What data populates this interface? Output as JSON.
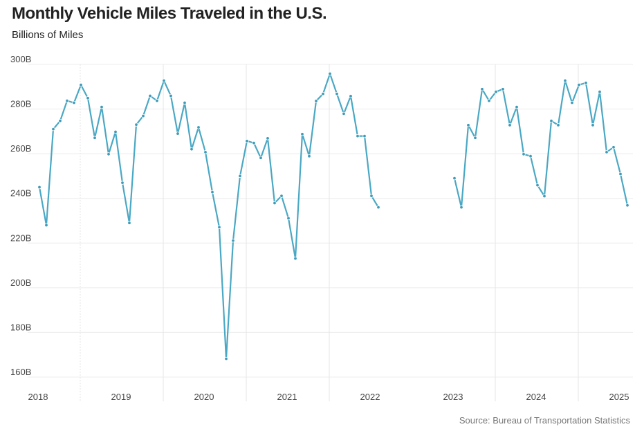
{
  "chart_data": {
    "type": "line",
    "title": "Monthly Vehicle Miles Traveled in the U.S.",
    "subtitle": "Billions of Miles",
    "source": "Source: Bureau of Transportation Statistics",
    "xlabel": "",
    "ylabel": "Billions of Miles",
    "ylim": [
      160,
      300
    ],
    "yticks": [
      300,
      280,
      260,
      240,
      220,
      200,
      180,
      160
    ],
    "ytick_labels": [
      "300B",
      "280B",
      "260B",
      "240B",
      "220B",
      "200B",
      "180B",
      "160B"
    ],
    "xtick_labels": [
      "2018",
      "2019",
      "2020",
      "2021",
      "2022",
      "2023",
      "2024",
      "2025"
    ],
    "grid": true,
    "color": "#4aa8c4",
    "series": [
      {
        "name": "Vehicle Miles Traveled",
        "start": "2018-01",
        "values": [
          245.0,
          228.0,
          271.0,
          274.7,
          283.7,
          282.8,
          290.8,
          284.9,
          267.1,
          280.9,
          259.8,
          269.8,
          247.0,
          229.0,
          273.0,
          276.9,
          285.9,
          283.7,
          292.7,
          285.9,
          269.0,
          282.8,
          262.0,
          271.8,
          260.7,
          242.8,
          227.1,
          168.2,
          221.1,
          250.0,
          265.7,
          264.8,
          258.1,
          266.9,
          237.9,
          241.1,
          231.1,
          213.1,
          268.8,
          258.9,
          283.6,
          286.8,
          295.8,
          286.8,
          277.9,
          285.8,
          267.9,
          267.9,
          241.1,
          236.0,
          null,
          null,
          null,
          null,
          null,
          null,
          null,
          null,
          null,
          null,
          249.0,
          236.0,
          272.8,
          267.1,
          288.9,
          283.7,
          287.7,
          288.9,
          272.8,
          280.9,
          259.8,
          258.9,
          245.9,
          241.0,
          274.7,
          272.8,
          292.7,
          282.8,
          290.8,
          291.7,
          272.8,
          287.7,
          260.7,
          262.9,
          250.9,
          236.9
        ]
      }
    ]
  }
}
